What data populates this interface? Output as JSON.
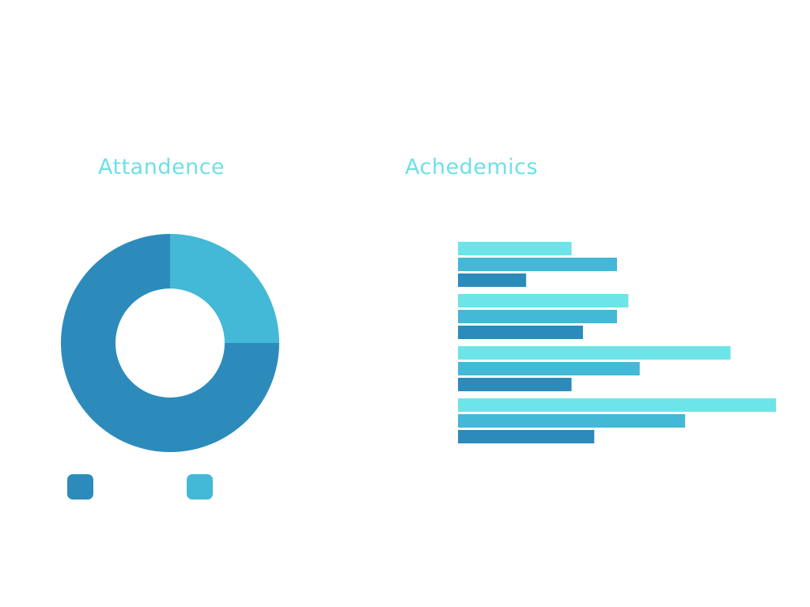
{
  "chart_data": [
    {
      "type": "pie",
      "title": "Attandence",
      "donut": true,
      "slices": [
        {
          "label": "",
          "value": 75,
          "color": "#2d8bbc"
        },
        {
          "label": "",
          "value": 25,
          "color": "#43b8d7"
        }
      ],
      "legend": [
        {
          "label": "",
          "color": "#2d8bbc"
        },
        {
          "label": "",
          "color": "#43b8d7"
        }
      ],
      "legend_placement": "bottom"
    },
    {
      "type": "bar",
      "orientation": "horizontal",
      "title": "Achedemics",
      "categories": [
        "",
        "",
        "",
        ""
      ],
      "series": [
        {
          "color": "#6de4e8",
          "values": [
            50,
            75,
            120,
            140
          ]
        },
        {
          "color": "#43b8d7",
          "values": [
            70,
            70,
            80,
            100
          ]
        },
        {
          "color": "#2d8bbc",
          "values": [
            30,
            55,
            50,
            60
          ]
        }
      ],
      "xlim": [
        0,
        140
      ],
      "grid": false
    }
  ]
}
